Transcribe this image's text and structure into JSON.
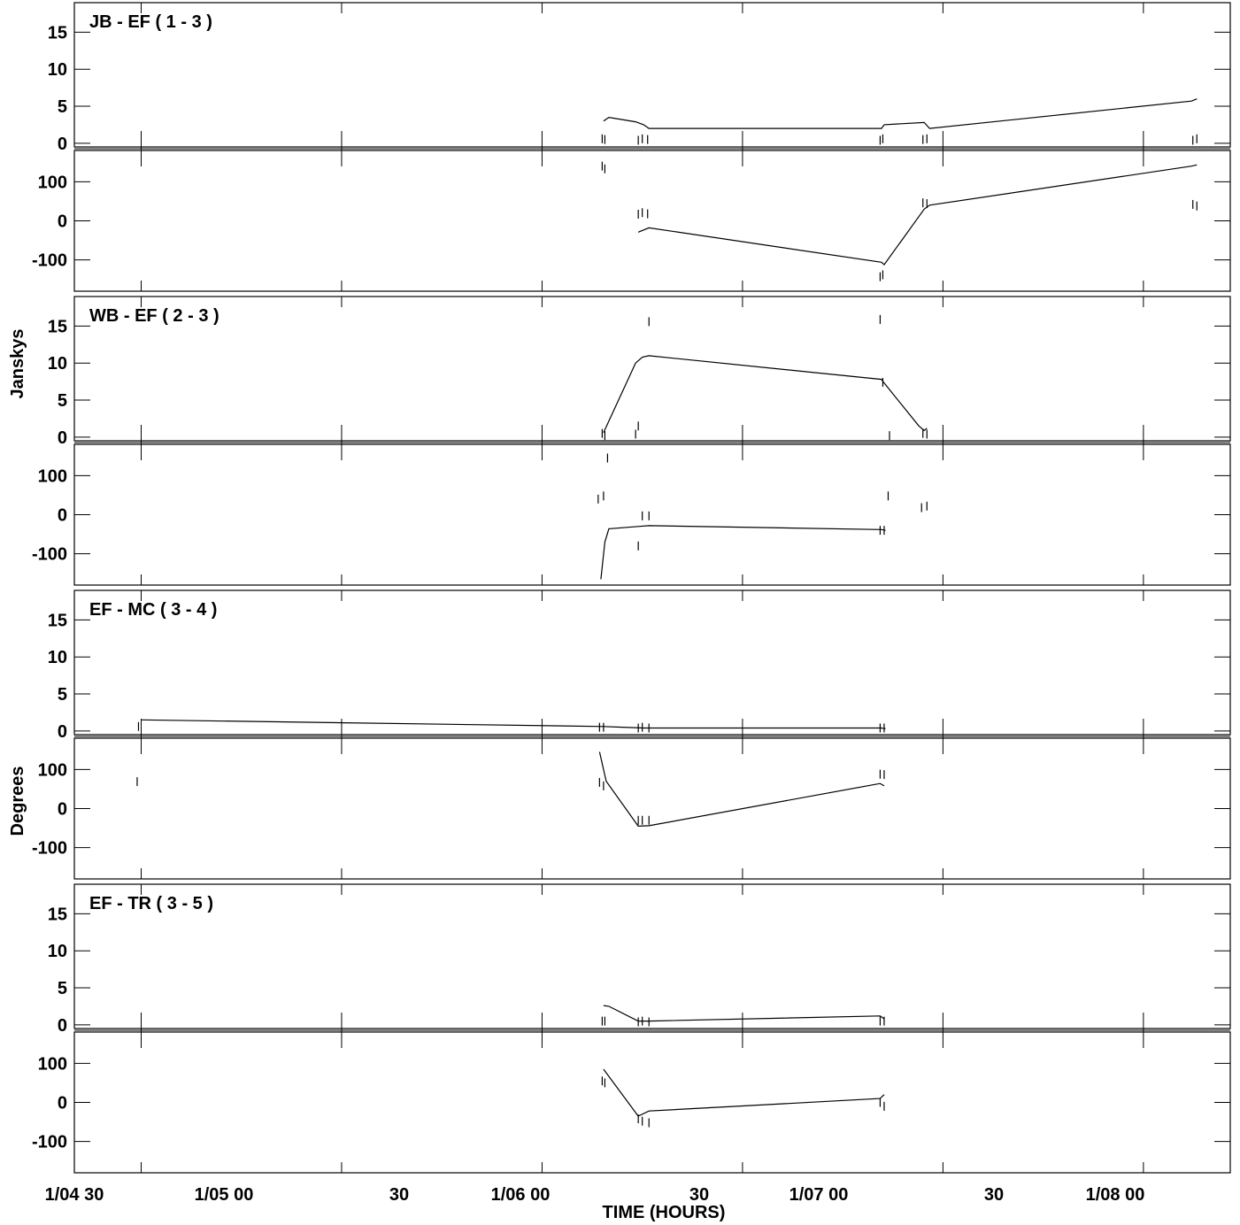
{
  "chart_data": {
    "type": "line",
    "xlabel": "TIME (HOURS)",
    "x_ticks": [
      "1/04 30",
      "1/05 00",
      "30",
      "1/06 00",
      "30",
      "1/07 00",
      "30",
      "1/08 00"
    ],
    "y_labels": [
      "Janskys",
      "Degrees"
    ],
    "amp_ticks": [
      "15",
      "10",
      "5",
      "0"
    ],
    "phase_ticks": [
      "100",
      "0",
      "-100"
    ],
    "amp_range": [
      -0.5,
      19
    ],
    "phase_range": [
      -180,
      180
    ],
    "x_range": [
      -5,
      81.5
    ],
    "panels": [
      {
        "title": "JB - EF ( 1 - 3 )",
        "amp_line": [
          [
            34.6,
            3.0
          ],
          [
            35,
            3.5
          ],
          [
            37,
            2.9
          ],
          [
            37.6,
            2.5
          ],
          [
            38,
            2.0
          ],
          [
            55.4,
            2.0
          ],
          [
            55.6,
            2.5
          ],
          [
            58.6,
            2.8
          ],
          [
            59,
            2.0
          ],
          [
            78.6,
            5.7
          ],
          [
            79,
            6.0
          ]
        ],
        "amp_points": [
          [
            34.5,
            0.6
          ],
          [
            34.7,
            0.5
          ],
          [
            37.2,
            0.4
          ],
          [
            37.5,
            0.6
          ],
          [
            37.9,
            0.5
          ],
          [
            55.3,
            0.4
          ],
          [
            55.5,
            0.6
          ],
          [
            58.5,
            0.5
          ],
          [
            58.8,
            0.6
          ],
          [
            78.7,
            0.4
          ],
          [
            79.0,
            0.6
          ]
        ],
        "phase_line": [
          [
            37.2,
            -29
          ],
          [
            38,
            -18
          ],
          [
            55.4,
            -106
          ],
          [
            55.6,
            -112
          ],
          [
            58.6,
            30
          ],
          [
            59,
            40
          ],
          [
            78.6,
            140
          ],
          [
            79,
            143
          ]
        ],
        "phase_points": [
          [
            34.5,
            140
          ],
          [
            34.7,
            133
          ],
          [
            37.2,
            17
          ],
          [
            37.5,
            21
          ],
          [
            37.9,
            18
          ],
          [
            55.3,
            -143
          ],
          [
            55.5,
            -138
          ],
          [
            58.5,
            46
          ],
          [
            58.8,
            44
          ],
          [
            78.7,
            42
          ],
          [
            79.0,
            38
          ]
        ]
      },
      {
        "title": "WB - EF ( 2 - 3 )",
        "amp_line": [
          [
            34.6,
            0.6
          ],
          [
            37,
            10.0
          ],
          [
            37.5,
            10.8
          ],
          [
            38,
            11.0
          ],
          [
            55.4,
            7.8
          ],
          [
            55.6,
            7.3
          ],
          [
            58.2,
            1.5
          ],
          [
            58.6,
            0.9
          ],
          [
            58.8,
            1.2
          ]
        ],
        "amp_points": [
          [
            34.5,
            0.5
          ],
          [
            34.7,
            0.2
          ],
          [
            37.2,
            1.5
          ],
          [
            37.0,
            0.4
          ],
          [
            38.0,
            15.6
          ],
          [
            55.3,
            15.9
          ],
          [
            55.5,
            7.4
          ],
          [
            56.0,
            0.2
          ],
          [
            58.5,
            0.5
          ],
          [
            58.8,
            0.4
          ]
        ],
        "phase_line": [
          [
            34.4,
            -165
          ],
          [
            34.7,
            -70
          ],
          [
            35,
            -36
          ],
          [
            37.2,
            -30
          ],
          [
            38,
            -28
          ],
          [
            55.4,
            -38
          ],
          [
            55.7,
            -40
          ]
        ],
        "phase_points": [
          [
            34.2,
            40
          ],
          [
            34.6,
            48
          ],
          [
            34.9,
            145
          ],
          [
            37.2,
            -80
          ],
          [
            37.5,
            -3
          ],
          [
            38.0,
            -3
          ],
          [
            55.3,
            -40
          ],
          [
            55.6,
            -40
          ],
          [
            55.9,
            48
          ],
          [
            58.4,
            18
          ],
          [
            58.8,
            22
          ]
        ]
      },
      {
        "title": "EF - MC ( 3 - 4 )",
        "amp_line": [
          [
            0,
            1.5
          ],
          [
            34.6,
            0.6
          ],
          [
            36,
            0.5
          ],
          [
            37.6,
            0.4
          ],
          [
            55.4,
            0.4
          ],
          [
            55.7,
            0.3
          ]
        ],
        "amp_points": [
          [
            -0.2,
            0.6
          ],
          [
            34.3,
            0.5
          ],
          [
            34.6,
            0.5
          ],
          [
            37.2,
            0.4
          ],
          [
            37.5,
            0.5
          ],
          [
            38.0,
            0.4
          ],
          [
            55.3,
            0.4
          ],
          [
            55.6,
            0.4
          ]
        ],
        "phase_line": [
          [
            34.3,
            145
          ],
          [
            34.8,
            70
          ],
          [
            37.2,
            -45
          ],
          [
            38,
            -44
          ],
          [
            55.3,
            64
          ],
          [
            55.6,
            58
          ]
        ],
        "phase_points": [
          [
            -0.3,
            69
          ],
          [
            34.3,
            67
          ],
          [
            34.6,
            58
          ],
          [
            37.2,
            -30
          ],
          [
            37.5,
            -30
          ],
          [
            38.0,
            -30
          ],
          [
            55.3,
            88
          ],
          [
            55.6,
            87
          ]
        ]
      },
      {
        "title": "EF - TR ( 3 - 5 )",
        "amp_line": [
          [
            34.6,
            2.6
          ],
          [
            35,
            2.5
          ],
          [
            37.2,
            0.5
          ],
          [
            38,
            0.5
          ],
          [
            55.3,
            1.2
          ],
          [
            55.6,
            0.8
          ]
        ],
        "amp_points": [
          [
            34.5,
            0.5
          ],
          [
            34.7,
            0.5
          ],
          [
            37.2,
            0.4
          ],
          [
            37.5,
            0.5
          ],
          [
            38.0,
            0.4
          ],
          [
            55.3,
            0.5
          ],
          [
            55.6,
            0.5
          ]
        ],
        "phase_line": [
          [
            34.6,
            85
          ],
          [
            37.2,
            -35
          ],
          [
            38,
            -22
          ],
          [
            55.3,
            10
          ],
          [
            55.6,
            20
          ]
        ],
        "phase_points": [
          [
            34.5,
            55
          ],
          [
            34.7,
            50
          ],
          [
            37.2,
            -42
          ],
          [
            37.5,
            -48
          ],
          [
            38.0,
            -52
          ],
          [
            55.3,
            0
          ],
          [
            55.6,
            -10
          ]
        ]
      }
    ]
  }
}
